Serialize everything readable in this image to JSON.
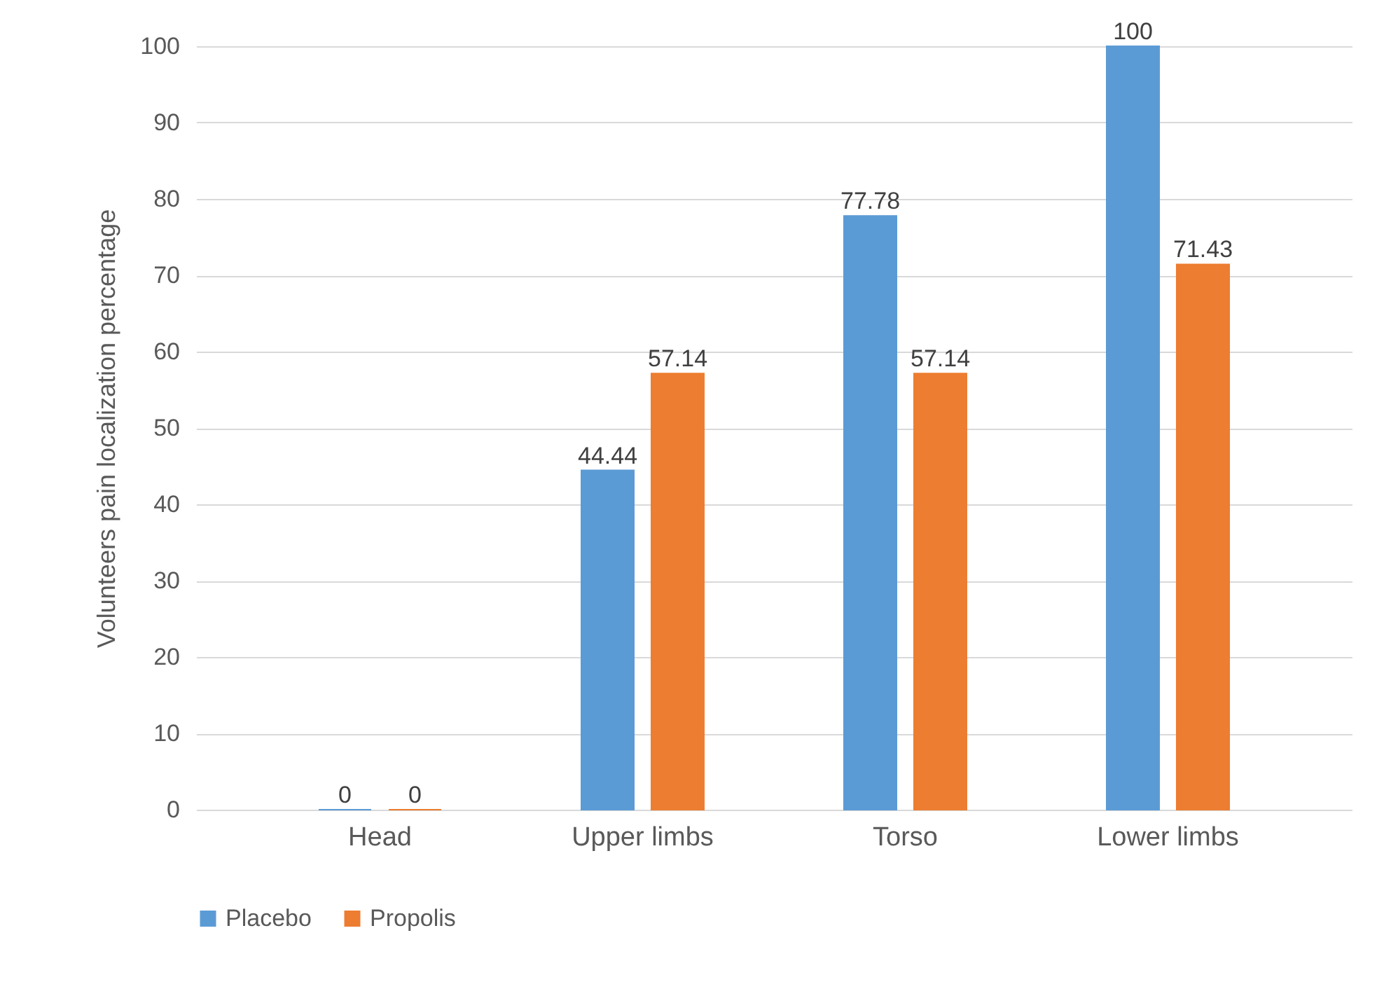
{
  "chart_data": {
    "type": "bar",
    "ylabel": "Volunteers pain localization  percentage",
    "categories": [
      "Head",
      "Upper limbs",
      "Torso",
      "Lower limbs"
    ],
    "series": [
      {
        "name": "Placebo",
        "color": "#5b9bd5",
        "values": [
          0,
          44.44,
          77.78,
          100
        ]
      },
      {
        "name": "Propolis",
        "color": "#ed7d31",
        "values": [
          0,
          57.14,
          57.14,
          71.43
        ]
      }
    ],
    "ylim": [
      0,
      100
    ],
    "yticks": [
      0,
      10,
      20,
      30,
      40,
      50,
      60,
      70,
      80,
      90,
      100
    ],
    "grid": "y",
    "legend": "bottom",
    "data_labels": true
  }
}
